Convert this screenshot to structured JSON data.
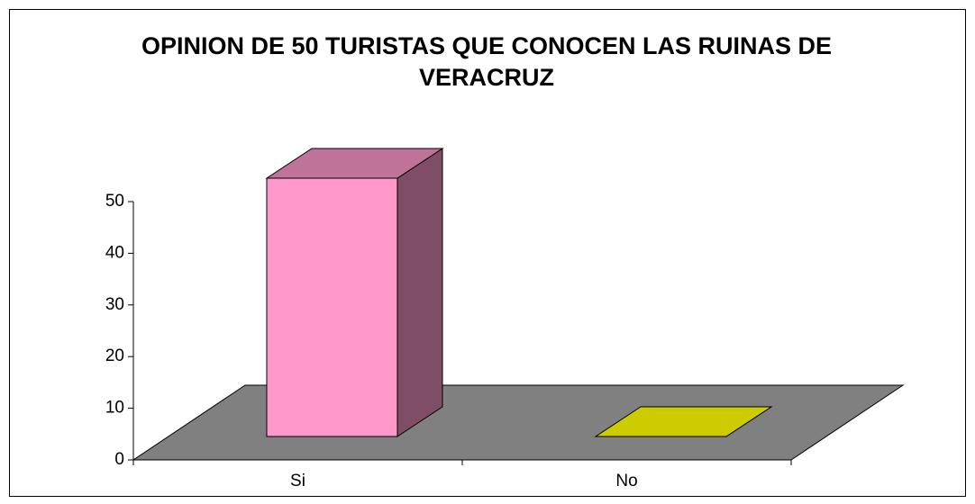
{
  "chart_data": {
    "type": "bar3d",
    "title": "OPINION DE 50 TURISTAS QUE CONOCEN LAS RUINAS DE VERACRUZ",
    "categories": [
      "Si",
      "No"
    ],
    "values": [
      50,
      0
    ],
    "colors": [
      "#ff99cc",
      "#cccc00"
    ],
    "ylim": [
      0,
      50
    ],
    "yticks": [
      0,
      10,
      20,
      30,
      40,
      50
    ]
  }
}
